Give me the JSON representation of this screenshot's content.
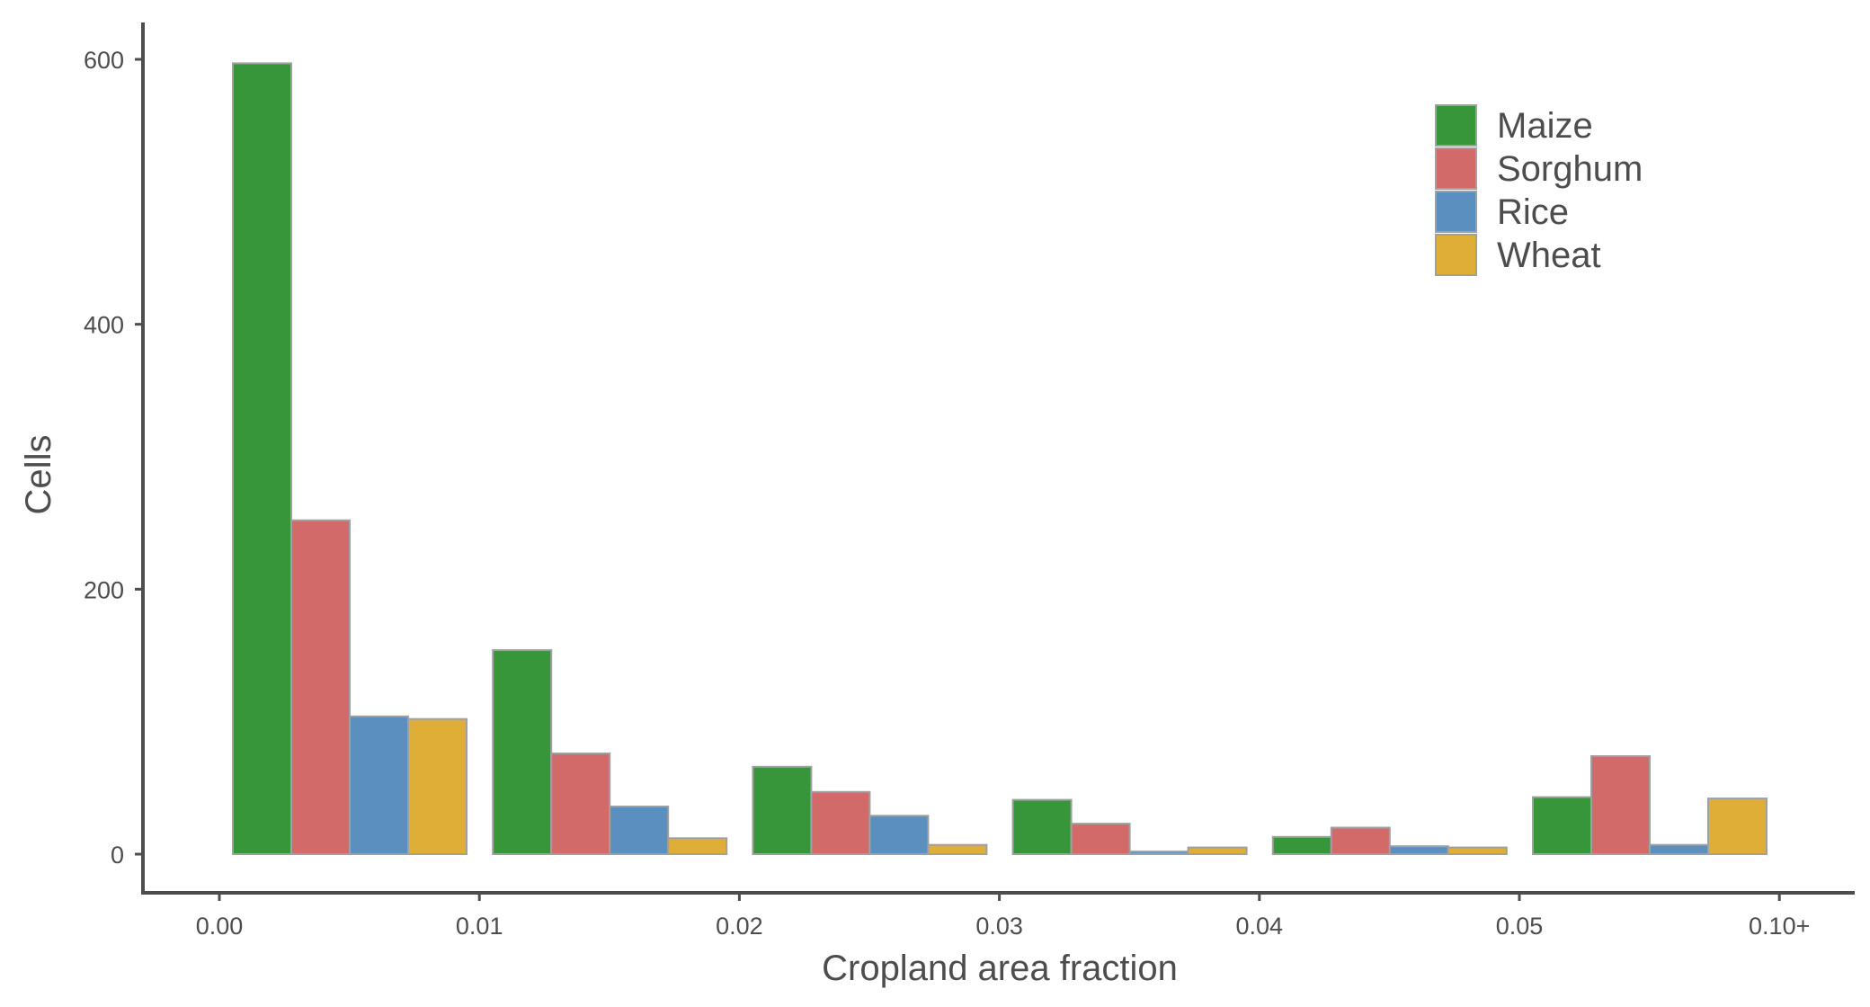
{
  "chart_data": {
    "type": "bar",
    "title": "",
    "xlabel": "Cropland area fraction",
    "ylabel": "Cells",
    "categories": [
      "0.00",
      "0.01",
      "0.02",
      "0.03",
      "0.04",
      "0.05"
    ],
    "x_tick_labels": [
      "0.00",
      "0.01",
      "0.02",
      "0.03",
      "0.04",
      "0.05",
      "0.10+"
    ],
    "y_ticks": [
      0,
      200,
      400,
      600
    ],
    "y_tick_labels": [
      "0",
      "200",
      "400",
      "600"
    ],
    "ylim": [
      -30,
      625
    ],
    "grid": false,
    "legend_position": "top-right",
    "series": [
      {
        "name": "Maize",
        "color": "#38963a",
        "values": [
          597,
          154,
          66,
          41,
          13,
          43
        ]
      },
      {
        "name": "Sorghum",
        "color": "#d36a6a",
        "values": [
          252,
          76,
          47,
          23,
          20,
          74
        ]
      },
      {
        "name": "Rice",
        "color": "#5a8fc0",
        "values": [
          104,
          36,
          29,
          2,
          6,
          7
        ]
      },
      {
        "name": "Wheat",
        "color": "#deae36",
        "values": [
          102,
          12,
          7,
          5,
          5,
          42
        ]
      }
    ]
  }
}
